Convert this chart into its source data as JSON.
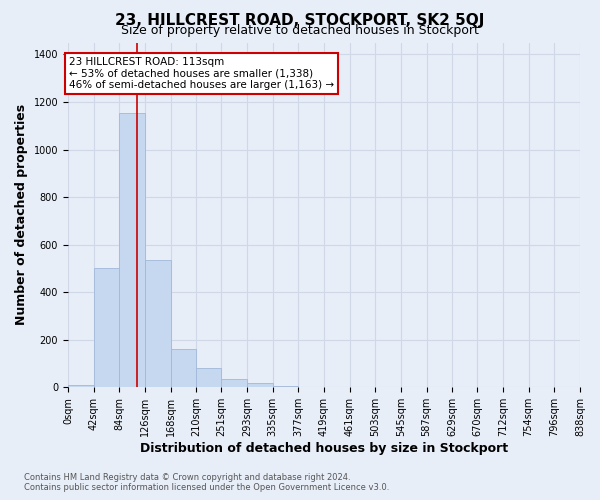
{
  "title": "23, HILLCREST ROAD, STOCKPORT, SK2 5QJ",
  "subtitle": "Size of property relative to detached houses in Stockport",
  "xlabel": "Distribution of detached houses by size in Stockport",
  "ylabel": "Number of detached properties",
  "footnote1": "Contains HM Land Registry data © Crown copyright and database right 2024.",
  "footnote2": "Contains public sector information licensed under the Open Government Licence v3.0.",
  "bar_edges": [
    0,
    42,
    84,
    126,
    168,
    210,
    251,
    293,
    335,
    377,
    419,
    461,
    503,
    545,
    587,
    629,
    670,
    712,
    754,
    796,
    838
  ],
  "bar_labels": [
    "0sqm",
    "42sqm",
    "84sqm",
    "126sqm",
    "168sqm",
    "210sqm",
    "251sqm",
    "293sqm",
    "335sqm",
    "377sqm",
    "419sqm",
    "461sqm",
    "503sqm",
    "545sqm",
    "587sqm",
    "629sqm",
    "670sqm",
    "712sqm",
    "754sqm",
    "796sqm",
    "838sqm"
  ],
  "bar_values": [
    8,
    500,
    1155,
    535,
    160,
    82,
    35,
    20,
    5,
    3,
    3,
    3,
    0,
    0,
    0,
    0,
    0,
    0,
    0,
    0
  ],
  "bar_color": "#c5d8f0",
  "bar_edge_color": "#a0b8d8",
  "property_line_x": 113,
  "property_line_color": "#cc0000",
  "ylim": [
    0,
    1450
  ],
  "yticks": [
    0,
    200,
    400,
    600,
    800,
    1000,
    1200,
    1400
  ],
  "annotation_line1": "23 HILLCREST ROAD: 113sqm",
  "annotation_line2": "← 53% of detached houses are smaller (1,338)",
  "annotation_line3": "46% of semi-detached houses are larger (1,163) →",
  "annotation_box_color": "#ffffff",
  "annotation_box_edge": "#cc0000",
  "grid_color": "#d0d8e8",
  "bg_color": "#e8eef8",
  "tick_label_fontsize": 7,
  "axis_label_fontsize": 9,
  "title_fontsize": 11,
  "subtitle_fontsize": 9
}
